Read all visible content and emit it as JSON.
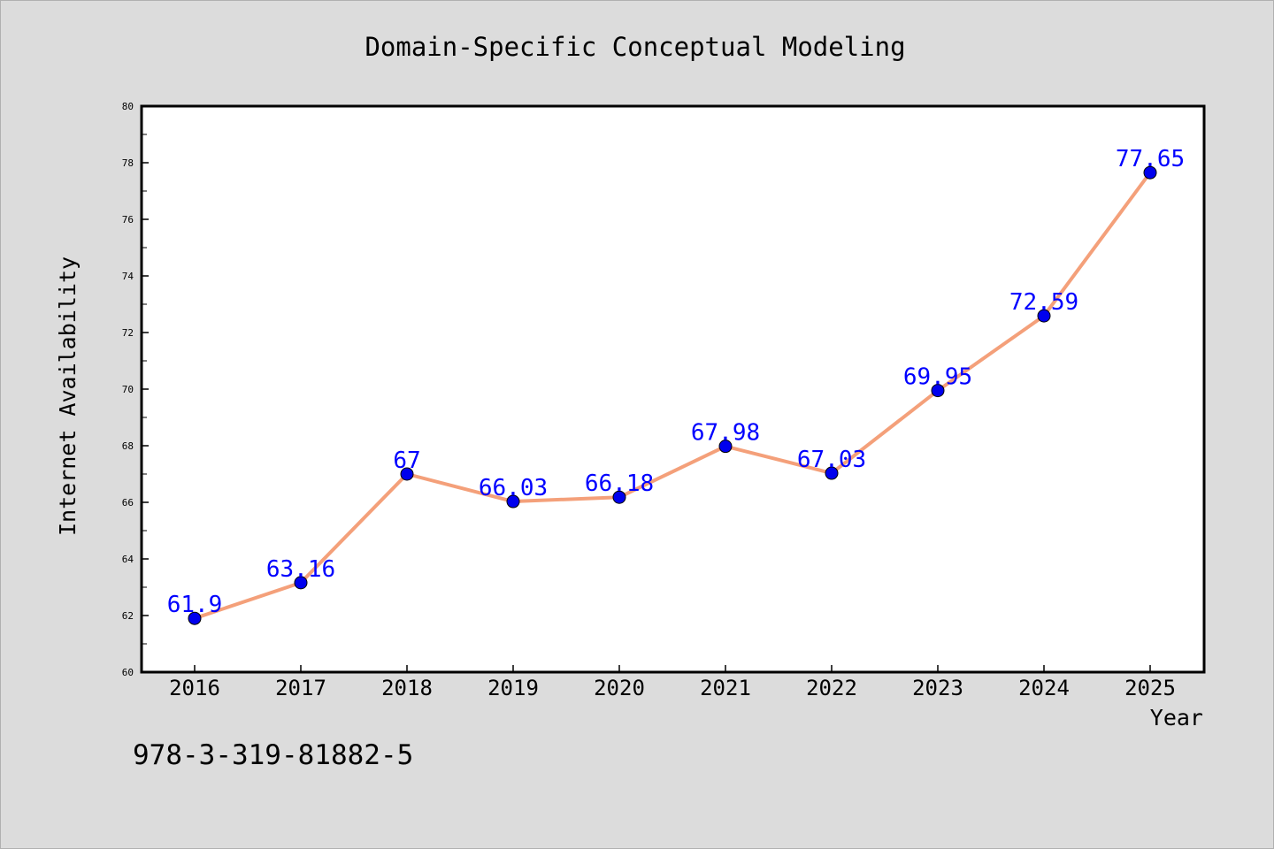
{
  "chart_data": {
    "type": "line",
    "title": "Domain-Specific Conceptual Modeling",
    "xlabel": "Year",
    "ylabel": "Internet Availability",
    "categories": [
      "2016",
      "2017",
      "2018",
      "2019",
      "2020",
      "2021",
      "2022",
      "2023",
      "2024",
      "2025"
    ],
    "series": [
      {
        "values": [
          61.9,
          63.16,
          67,
          66.03,
          66.18,
          67.98,
          67.03,
          69.95,
          72.59,
          77.65
        ],
        "labels": [
          "61.9",
          "63.16",
          "67",
          "66.03",
          "66.18",
          "67.98",
          "67.03",
          "69.95",
          "72.59",
          "77.65"
        ],
        "line_color": "#f4a07a",
        "marker_color": "#0000ee",
        "label_color": "#0000ff"
      }
    ],
    "ylim": [
      60,
      80
    ],
    "yticks": [
      "60",
      "62",
      "64",
      "66",
      "68",
      "70",
      "72",
      "74",
      "76",
      "78",
      "80"
    ],
    "grid": false,
    "legend": "none"
  },
  "footer_text": "978-3-319-81882-5",
  "colors": {
    "background": "#dcdcdc",
    "plot_background": "#ffffff",
    "axis": "#000000"
  }
}
